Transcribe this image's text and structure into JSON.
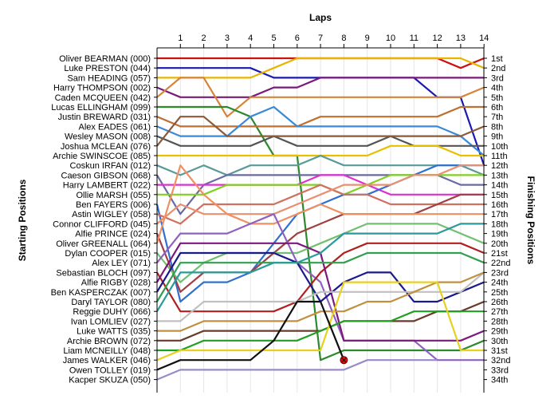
{
  "chart_data": {
    "type": "line",
    "title": "",
    "top_axis_label": "Laps",
    "left_axis_label": "Starting Positions",
    "right_axis_label": "Finishing Positions",
    "x": [
      1,
      2,
      3,
      4,
      5,
      6,
      7,
      8,
      9,
      10,
      11,
      12,
      13,
      14
    ],
    "x_tick_labels": [
      "1",
      "2",
      "3",
      "4",
      "5",
      "6",
      "7",
      "8",
      "9",
      "10",
      "11",
      "12",
      "13",
      "14"
    ],
    "ylim": [
      1,
      34
    ],
    "y_inverted": true,
    "grid": true,
    "finishing_position_labels": [
      "1st",
      "2nd",
      "3rd",
      "4th",
      "5th",
      "6th",
      "7th",
      "8th",
      "9th",
      "10th",
      "11th",
      "12th",
      "13th",
      "14th",
      "15th",
      "16th",
      "17th",
      "18th",
      "19th",
      "20th",
      "21st",
      "22nd",
      "23rd",
      "24th",
      "25th",
      "26th",
      "27th",
      "28th",
      "29th",
      "30th",
      "31st",
      "32nd",
      "33rd",
      "34th"
    ],
    "annotations": [
      {
        "label": "retired-marker",
        "lap": 8,
        "position": 32
      }
    ],
    "series": [
      {
        "name": "Oliver BEARMAN (000)",
        "color": "#cc1111",
        "values": [
          1,
          1,
          1,
          1,
          1,
          1,
          1,
          1,
          1,
          1,
          1,
          1,
          2,
          1
        ]
      },
      {
        "name": "Luke PRESTON (044)",
        "color": "#1a1ab0",
        "values": [
          2,
          2,
          2,
          2,
          3,
          3,
          3,
          3,
          3,
          3,
          3,
          5,
          5,
          12
        ]
      },
      {
        "name": "Sam HEADING (057)",
        "color": "#e8b400",
        "values": [
          3,
          3,
          3,
          3,
          2,
          1,
          1,
          1,
          1,
          1,
          1,
          1,
          1,
          2
        ]
      },
      {
        "name": "Harry THOMPSON (002)",
        "color": "#7a1a7a",
        "values": [
          5,
          5,
          5,
          5,
          4,
          4,
          3,
          3,
          3,
          3,
          3,
          3,
          3,
          3
        ]
      },
      {
        "name": "Caden MCQUEEN (042)",
        "color": "#d7843a",
        "values": [
          3,
          3,
          7,
          5,
          5,
          5,
          5,
          5,
          5,
          5,
          5,
          5,
          5,
          4
        ]
      },
      {
        "name": "Lucas ELLINGHAM (099)",
        "color": "#2c8a2c",
        "values": [
          6,
          6,
          6,
          7,
          11,
          11,
          32,
          31,
          31,
          31,
          31,
          31,
          31,
          30
        ]
      },
      {
        "name": "Justin BREWARD (031)",
        "color": "#bf7030",
        "values": [
          8,
          8,
          8,
          8,
          8,
          8,
          7,
          7,
          7,
          7,
          7,
          7,
          6,
          6
        ]
      },
      {
        "name": "Alex EADES (061)",
        "color": "#3a8ad6",
        "values": [
          9,
          9,
          9,
          7,
          6,
          8,
          8,
          8,
          8,
          8,
          8,
          8,
          9,
          11
        ]
      },
      {
        "name": "Wesley MASON (008)",
        "color": "#555555",
        "values": [
          10,
          10,
          10,
          10,
          9,
          10,
          10,
          10,
          10,
          9,
          10,
          10,
          10,
          10
        ]
      },
      {
        "name": "Joshua MCLEAN (076)",
        "color": "#8a5a3a",
        "values": [
          7,
          7,
          9,
          9,
          9,
          9,
          9,
          9,
          9,
          9,
          9,
          9,
          9,
          8
        ]
      },
      {
        "name": "Archie SWINSCOE (085)",
        "color": "#e8c000",
        "values": [
          11,
          11,
          11,
          11,
          11,
          11,
          11,
          11,
          11,
          10,
          10,
          10,
          11,
          11
        ]
      },
      {
        "name": "Coskun IRFAN (012)",
        "color": "#5a9a9a",
        "values": [
          13,
          12,
          13,
          12,
          12,
          12,
          11,
          12,
          12,
          12,
          12,
          12,
          12,
          13
        ]
      },
      {
        "name": "Caeson GIBSON (068)",
        "color": "#6a6aa0",
        "values": [
          17,
          14,
          13,
          13,
          13,
          13,
          13,
          13,
          13,
          13,
          13,
          13,
          14,
          14
        ]
      },
      {
        "name": "Harry LAMBERT (022)",
        "color": "#e030d0",
        "values": [
          14,
          14,
          14,
          14,
          14,
          14,
          13,
          13,
          14,
          15,
          15,
          15,
          15,
          15
        ]
      },
      {
        "name": "Ollie MARSH (055)",
        "color": "#80d020",
        "values": [
          15,
          15,
          14,
          14,
          14,
          14,
          14,
          15,
          14,
          13,
          13,
          13,
          13,
          13
        ]
      },
      {
        "name": "Ben FAYERS (006)",
        "color": "#3070d0",
        "values": [
          26,
          24,
          24,
          23,
          20,
          17,
          16,
          15,
          15,
          14,
          13,
          12,
          12,
          12
        ]
      },
      {
        "name": "Astin WIGLEY (058)",
        "color": "#d07060",
        "values": [
          18,
          16,
          16,
          16,
          16,
          15,
          14,
          15,
          15,
          16,
          16,
          16,
          16,
          16
        ]
      },
      {
        "name": "Connor CLIFFORD (045)",
        "color": "#e89070",
        "values": [
          16,
          17,
          17,
          17,
          17,
          16,
          15,
          14,
          14,
          14,
          13,
          13,
          12,
          12
        ]
      },
      {
        "name": "Alfie PRINCE (024)",
        "color": "#a04040",
        "values": [
          25,
          23,
          23,
          23,
          21,
          19,
          18,
          17,
          17,
          17,
          17,
          16,
          15,
          15
        ]
      },
      {
        "name": "Oliver GREENALL (064)",
        "color": "#f09060",
        "values": [
          12,
          15,
          17,
          18,
          18,
          17,
          16,
          17,
          17,
          17,
          17,
          17,
          17,
          17
        ]
      },
      {
        "name": "Dylan COOPER (015)",
        "color": "#70c070",
        "values": [
          24,
          22,
          21,
          21,
          21,
          21,
          20,
          19,
          18,
          18,
          18,
          18,
          19,
          20
        ]
      },
      {
        "name": "Alex LEY (071)",
        "color": "#9060c0",
        "values": [
          19,
          19,
          19,
          18,
          17,
          22,
          24,
          30,
          30,
          30,
          30,
          32,
          32,
          32
        ]
      },
      {
        "name": "Sebastian BLOCH (097)",
        "color": "#b02020",
        "values": [
          27,
          27,
          27,
          27,
          27,
          26,
          23,
          21,
          20,
          20,
          20,
          20,
          20,
          21
        ]
      },
      {
        "name": "Alfie RIGBY (028)",
        "color": "#7a1a7a",
        "values": [
          20,
          20,
          20,
          20,
          20,
          20,
          21,
          30,
          30,
          30,
          30,
          30,
          30,
          29
        ]
      },
      {
        "name": "Ben KASPERCZAK (007)",
        "color": "#1a1a8a",
        "values": [
          21,
          21,
          21,
          21,
          21,
          22,
          26,
          24,
          23,
          23,
          26,
          26,
          25,
          24
        ]
      },
      {
        "name": "Daryl TAYLOR (080)",
        "color": "#30a050",
        "values": [
          22,
          22,
          22,
          22,
          22,
          22,
          22,
          22,
          21,
          21,
          21,
          21,
          21,
          22
        ]
      },
      {
        "name": "Reggie DUHY (066)",
        "color": "#2a9a9a",
        "values": [
          23,
          23,
          23,
          23,
          22,
          22,
          21,
          19,
          19,
          19,
          19,
          19,
          18,
          18
        ]
      },
      {
        "name": "Ivan LOMLIEV (027)",
        "color": "#c0c0c0",
        "values": [
          28,
          26,
          26,
          26,
          26,
          26,
          25,
          25,
          25,
          25,
          25,
          25,
          25,
          23
        ]
      },
      {
        "name": "Luke WATTS (035)",
        "color": "#c09040",
        "values": [
          29,
          28,
          28,
          28,
          28,
          28,
          27,
          27,
          26,
          26,
          25,
          24,
          24,
          23
        ]
      },
      {
        "name": "Archie BROWN (072)",
        "color": "#6a3a2a",
        "values": [
          30,
          29,
          29,
          29,
          29,
          29,
          29,
          28,
          28,
          28,
          28,
          27,
          27,
          26
        ]
      },
      {
        "name": "Liam MCNEILLY (048)",
        "color": "#20a020",
        "values": [
          31,
          30,
          30,
          30,
          30,
          30,
          29,
          28,
          28,
          28,
          27,
          27,
          27,
          27
        ]
      },
      {
        "name": "James WALKER (046)",
        "color": "#e8d020",
        "values": [
          31,
          31,
          31,
          31,
          31,
          31,
          31,
          24,
          24,
          24,
          24,
          24,
          31,
          31
        ]
      },
      {
        "name": "Owen TOLLEY (019)",
        "color": "#101010",
        "values": [
          32,
          32,
          32,
          32,
          30,
          26,
          26,
          32,
          null,
          null,
          null,
          null,
          null,
          null
        ]
      },
      {
        "name": "Kacper SKUZA (050)",
        "color": "#9a8ac8",
        "values": [
          33,
          33,
          33,
          33,
          33,
          33,
          33,
          33,
          32,
          32,
          32,
          32,
          null,
          null
        ]
      }
    ]
  }
}
